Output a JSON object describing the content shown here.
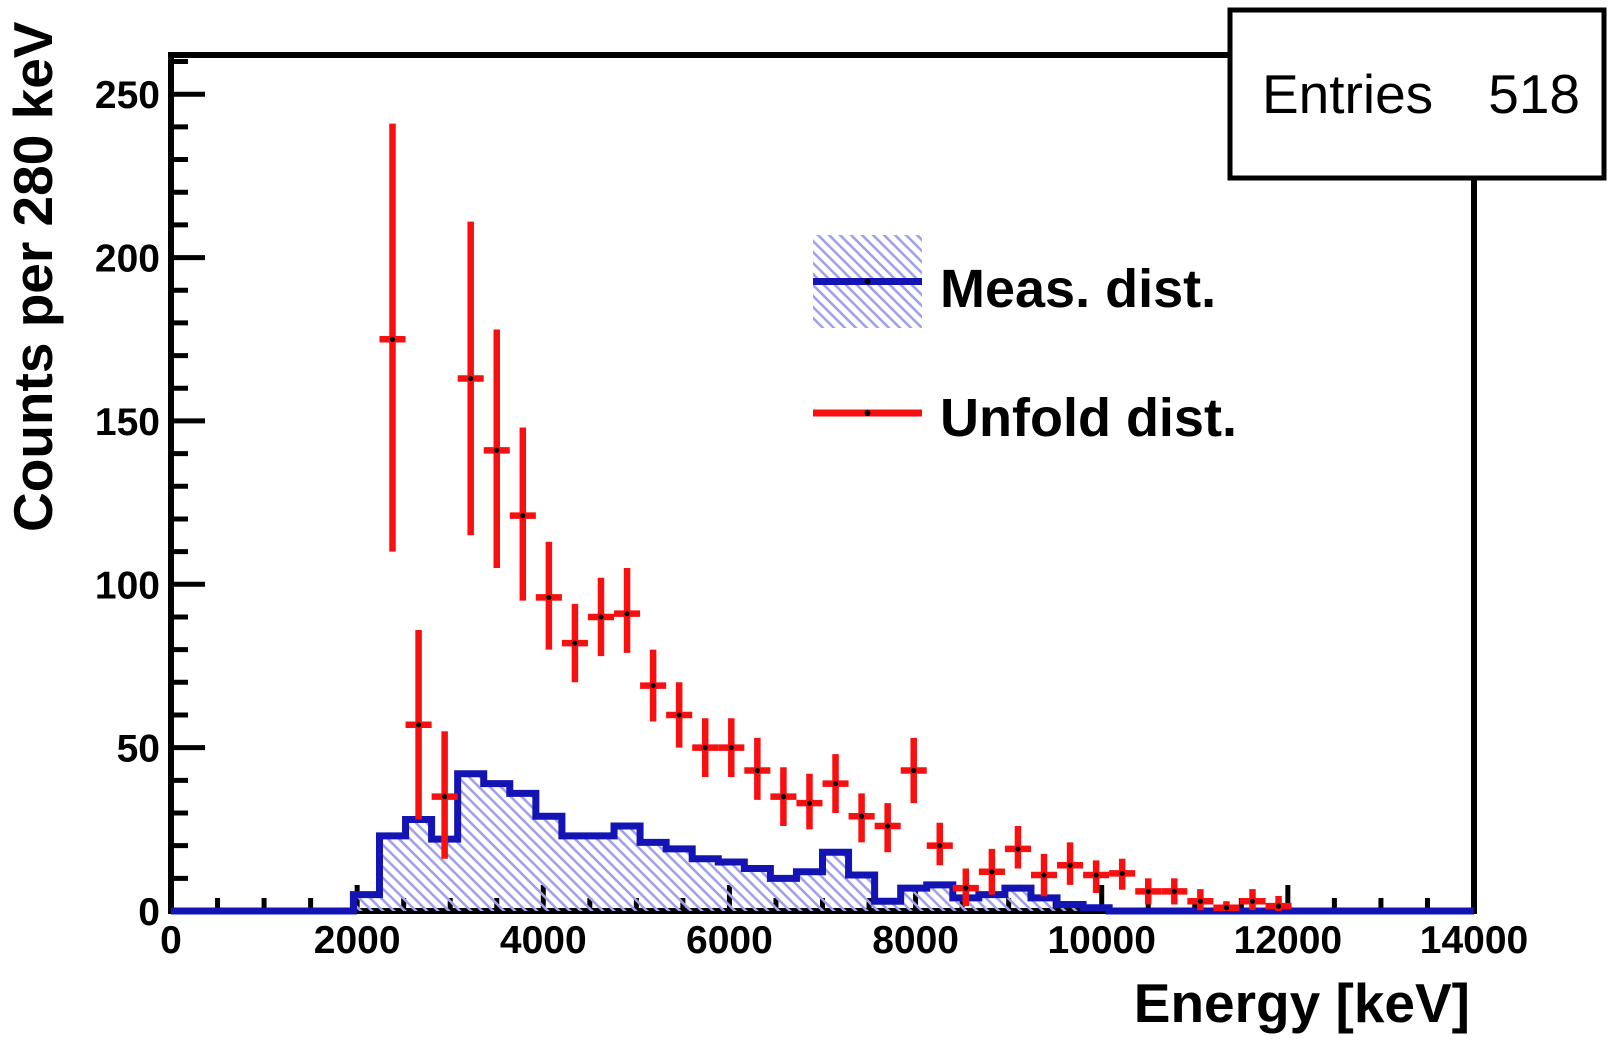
{
  "stats_box": {
    "label": "Entries",
    "value": "518"
  },
  "legend": {
    "meas_label": "Meas. dist.",
    "unfold_label": "Unfold dist."
  },
  "axes": {
    "x_title": "Energy [keV]",
    "y_title": "Counts per 280 keV",
    "x_major_ticks": [
      0,
      2000,
      4000,
      6000,
      8000,
      10000,
      12000,
      14000
    ],
    "x_minor_step": 500,
    "y_major_ticks": [
      0,
      50,
      100,
      150,
      200,
      250
    ],
    "y_minor_step": 10
  },
  "colors": {
    "meas_line": "#1414b4",
    "meas_hatch": "#a2a2ec",
    "unfold": "#f80f0f",
    "axis": "#000000",
    "marker": "#000000"
  },
  "chart_data": {
    "type": "bar",
    "subtype": "step-histogram-with-errorbars",
    "title": "",
    "xlabel": "Energy [keV]",
    "ylabel": "Counts per 280 keV",
    "xlim": [
      0,
      14000
    ],
    "ylim": [
      0,
      262
    ],
    "grid": false,
    "legend_position": "upper-right-inside",
    "entries": 518,
    "bin_width": 280,
    "series": [
      {
        "name": "Meas. dist.",
        "style": "hatched-step-histogram",
        "first_bin_edge": 1960,
        "values": [
          5,
          23,
          28,
          22,
          42,
          39,
          36,
          29,
          23,
          23,
          26,
          21,
          19,
          16,
          15,
          13,
          10,
          12,
          18,
          11,
          3,
          7,
          8,
          4,
          5,
          7,
          4,
          2,
          1
        ]
      },
      {
        "name": "Unfold dist.",
        "style": "errorbar",
        "points": [
          {
            "x": 2380,
            "y": 175,
            "ylow": 110,
            "yhigh": 241
          },
          {
            "x": 2660,
            "y": 57,
            "ylow": 28,
            "yhigh": 86
          },
          {
            "x": 2940,
            "y": 35,
            "ylow": 16,
            "yhigh": 55
          },
          {
            "x": 3220,
            "y": 163,
            "ylow": 115,
            "yhigh": 211
          },
          {
            "x": 3500,
            "y": 141,
            "ylow": 105,
            "yhigh": 178
          },
          {
            "x": 3780,
            "y": 121,
            "ylow": 95,
            "yhigh": 148
          },
          {
            "x": 4060,
            "y": 96,
            "ylow": 80,
            "yhigh": 113
          },
          {
            "x": 4340,
            "y": 82,
            "ylow": 70,
            "yhigh": 94
          },
          {
            "x": 4620,
            "y": 90,
            "ylow": 78,
            "yhigh": 102
          },
          {
            "x": 4900,
            "y": 91,
            "ylow": 79,
            "yhigh": 105
          },
          {
            "x": 5180,
            "y": 69,
            "ylow": 58,
            "yhigh": 80
          },
          {
            "x": 5460,
            "y": 60,
            "ylow": 50,
            "yhigh": 70
          },
          {
            "x": 5740,
            "y": 50,
            "ylow": 41,
            "yhigh": 59
          },
          {
            "x": 6020,
            "y": 50,
            "ylow": 41,
            "yhigh": 59
          },
          {
            "x": 6300,
            "y": 43,
            "ylow": 34,
            "yhigh": 53
          },
          {
            "x": 6580,
            "y": 35,
            "ylow": 26,
            "yhigh": 44
          },
          {
            "x": 6860,
            "y": 33,
            "ylow": 25,
            "yhigh": 42
          },
          {
            "x": 7140,
            "y": 39,
            "ylow": 30,
            "yhigh": 48
          },
          {
            "x": 7420,
            "y": 29,
            "ylow": 21,
            "yhigh": 36
          },
          {
            "x": 7700,
            "y": 26,
            "ylow": 18,
            "yhigh": 33
          },
          {
            "x": 7980,
            "y": 43,
            "ylow": 33,
            "yhigh": 53
          },
          {
            "x": 8260,
            "y": 20,
            "ylow": 14,
            "yhigh": 27
          },
          {
            "x": 8540,
            "y": 7,
            "ylow": 1.5,
            "yhigh": 13
          },
          {
            "x": 8820,
            "y": 12,
            "ylow": 5,
            "yhigh": 19
          },
          {
            "x": 9100,
            "y": 19,
            "ylow": 13,
            "yhigh": 26
          },
          {
            "x": 9380,
            "y": 11,
            "ylow": 4.5,
            "yhigh": 17.5
          },
          {
            "x": 9660,
            "y": 14,
            "ylow": 8,
            "yhigh": 21
          },
          {
            "x": 9940,
            "y": 11,
            "ylow": 5.5,
            "yhigh": 15.5
          },
          {
            "x": 10220,
            "y": 11.5,
            "ylow": 6.5,
            "yhigh": 16
          },
          {
            "x": 10500,
            "y": 6,
            "ylow": 2,
            "yhigh": 10
          },
          {
            "x": 10780,
            "y": 6,
            "ylow": 2,
            "yhigh": 10
          },
          {
            "x": 11060,
            "y": 3,
            "ylow": 0.2,
            "yhigh": 6.7
          },
          {
            "x": 11340,
            "y": 1,
            "ylow": 0,
            "yhigh": 3
          },
          {
            "x": 11620,
            "y": 3,
            "ylow": 0.3,
            "yhigh": 6.7
          },
          {
            "x": 11900,
            "y": 1.5,
            "ylow": 0,
            "yhigh": 4.6
          }
        ]
      }
    ]
  }
}
